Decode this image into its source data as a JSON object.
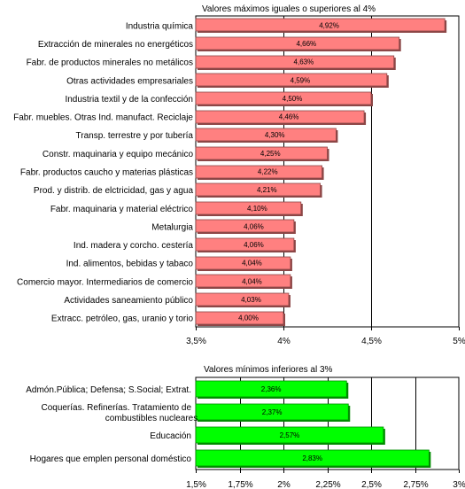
{
  "chart_data": [
    {
      "type": "bar",
      "orientation": "horizontal",
      "title": "Valores máximos iguales o superiores al 4%",
      "categories": [
        "Industria química",
        "Extracción de minerales no energéticos",
        "Fabr. de productos minerales no metálicos",
        "Otras actividades empresariales",
        "Industria textil y de la confección",
        "Fabr. muebles. Otras Ind. manufact. Reciclaje",
        "Transp. terrestre y por tubería",
        "Constr. maquinaria y equipo mecánico",
        "Fabr. productos caucho y materias plásticas",
        "Prod. y distrib. de elctricidad, gas y agua",
        "Fabr. maquinaria y material eléctrico",
        "Metalurgia",
        "Ind. madera y corcho. cestería",
        "Ind. alimentos, bebidas y tabaco",
        "Comercio mayor. Intermediarios de comercio",
        "Actividades saneamiento público",
        "Extracc. petróleo, gas, uranio y torio"
      ],
      "values": [
        4.92,
        4.66,
        4.63,
        4.59,
        4.5,
        4.46,
        4.3,
        4.25,
        4.22,
        4.21,
        4.1,
        4.06,
        4.06,
        4.04,
        4.04,
        4.03,
        4.0
      ],
      "value_labels": [
        "4,92%",
        "4,66%",
        "4,63%",
        "4,59%",
        "4,50%",
        "4,46%",
        "4,30%",
        "4,25%",
        "4,22%",
        "4,21%",
        "4,10%",
        "4,06%",
        "4,06%",
        "4,04%",
        "4,04%",
        "4,03%",
        "4,00%"
      ],
      "xlim": [
        3.5,
        5
      ],
      "xticks": [
        3.5,
        4,
        4.5,
        5
      ],
      "xtick_labels": [
        "3,5%",
        "4%",
        "4,5%",
        "5%"
      ],
      "grid": "vertical",
      "bar_color": "#ff8080"
    },
    {
      "type": "bar",
      "orientation": "horizontal",
      "title": "Valores mínimos inferiores al 3%",
      "categories": [
        "Admón.Pública; Defensa; S.Social; Extrat.",
        "Coquerías. Refinerías. Tratamiento de combustibles nucleares",
        "Educación",
        "Hogares que emplen personal doméstico"
      ],
      "category_lines": [
        [
          "Admón.Pública; Defensa; S.Social; Extrat."
        ],
        [
          "Coquerías. Refinerías. Tratamiento de",
          "combustibles nucleares"
        ],
        [
          "Educación"
        ],
        [
          "Hogares que emplen personal doméstico"
        ]
      ],
      "values": [
        2.36,
        2.37,
        2.57,
        2.83
      ],
      "value_labels": [
        "2,36%",
        "2,37%",
        "2,57%",
        "2,83%"
      ],
      "xlim": [
        1.5,
        3
      ],
      "xticks": [
        1.5,
        1.75,
        2,
        2.25,
        2.5,
        2.75,
        3
      ],
      "xtick_labels": [
        "1,5%",
        "1,75%",
        "2%",
        "2,25%",
        "2,5%",
        "2,75%",
        "3%"
      ],
      "grid": "vertical",
      "bar_color": "#00ff00"
    }
  ]
}
